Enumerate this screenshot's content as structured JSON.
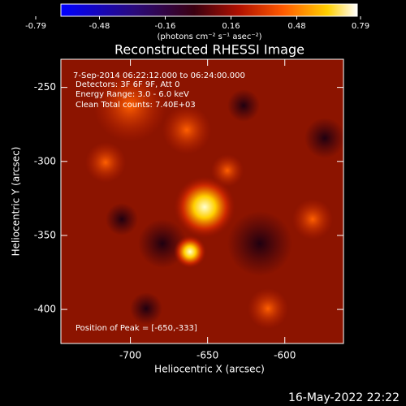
{
  "chart_data": {
    "type": "image",
    "title": "Reconstructed RHESSI Image",
    "colorbar_label": "(photons cm⁻² s⁻¹ asec⁻²)",
    "colorbar_lim": [
      -0.79,
      0.79
    ],
    "colorbar_ticks": [
      -0.79,
      -0.48,
      -0.16,
      0.16,
      0.48,
      0.79
    ],
    "x_label": "Heliocentric X (arcsec)",
    "y_label": "Heliocentric Y (arcsec)",
    "xlim": [
      -745,
      -562
    ],
    "xticks": [
      -700,
      -650,
      -600
    ],
    "ylim": [
      -423,
      -231
    ],
    "yticks": [
      -400,
      -350,
      -300,
      -250
    ],
    "annotations": [
      "7-Sep-2014 06:22:12.000 to 06:24:00.000",
      "Detectors: 3F 6F 9F, Att 0",
      "Energy Range: 3.0 - 6.0 keV",
      "Clean     Total counts: 7.40E+03"
    ],
    "peak_label": "Position of Peak = [-650,-333]",
    "timestamp": "16-May-2022 22:22"
  }
}
